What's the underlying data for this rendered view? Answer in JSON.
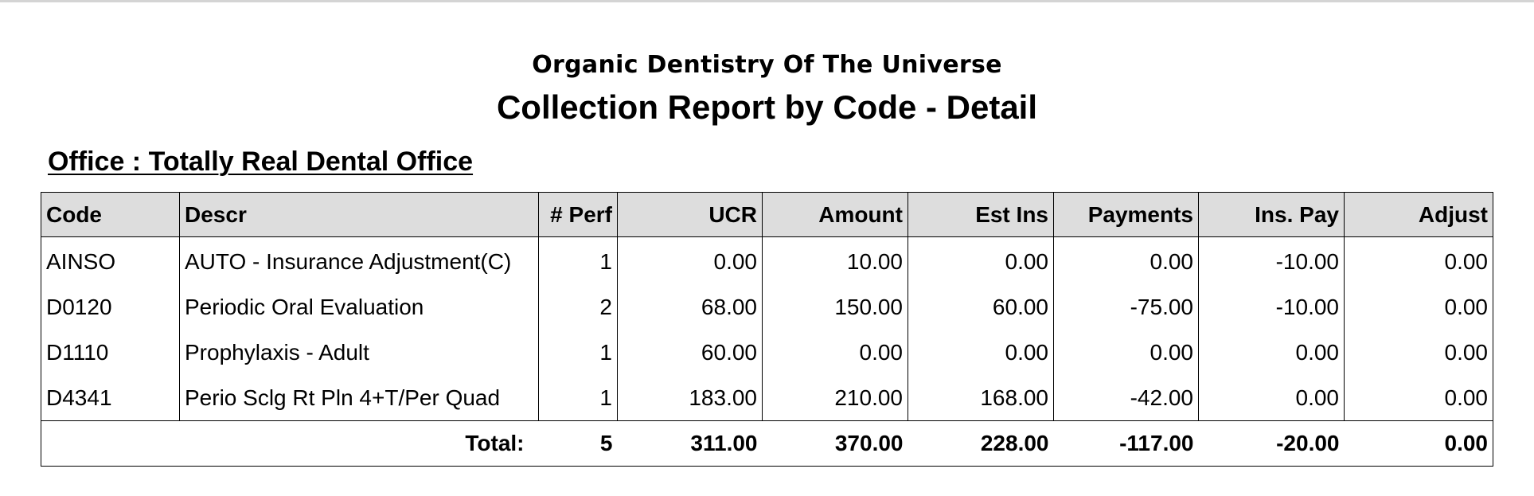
{
  "report": {
    "organization": "Organic Dentistry Of The Universe",
    "title": "Collection Report by Code - Detail",
    "office_heading": "Office : Totally Real Dental Office"
  },
  "table": {
    "headers": {
      "code": "Code",
      "descr": "Descr",
      "perf": "# Perf",
      "ucr": "UCR",
      "amount": "Amount",
      "est_ins": "Est Ins",
      "payments": "Payments",
      "ins_pay": "Ins. Pay",
      "adjust": "Adjust"
    },
    "rows": [
      {
        "code": "AINSO",
        "descr": "AUTO - Insurance Adjustment(C)",
        "perf": "1",
        "ucr": "0.00",
        "amount": "10.00",
        "est_ins": "0.00",
        "payments": "0.00",
        "ins_pay": "-10.00",
        "adjust": "0.00"
      },
      {
        "code": "D0120",
        "descr": "Periodic Oral Evaluation",
        "perf": "2",
        "ucr": "68.00",
        "amount": "150.00",
        "est_ins": "60.00",
        "payments": "-75.00",
        "ins_pay": "-10.00",
        "adjust": "0.00"
      },
      {
        "code": "D1110",
        "descr": "Prophylaxis - Adult",
        "perf": "1",
        "ucr": "60.00",
        "amount": "0.00",
        "est_ins": "0.00",
        "payments": "0.00",
        "ins_pay": "0.00",
        "adjust": "0.00"
      },
      {
        "code": "D4341",
        "descr": "Perio Sclg Rt Pln 4+T/Per Quad",
        "perf": "1",
        "ucr": "183.00",
        "amount": "210.00",
        "est_ins": "168.00",
        "payments": "-42.00",
        "ins_pay": "0.00",
        "adjust": "0.00"
      }
    ],
    "total": {
      "label": "Total:",
      "perf": "5",
      "ucr": "311.00",
      "amount": "370.00",
      "est_ins": "228.00",
      "payments": "-117.00",
      "ins_pay": "-20.00",
      "adjust": "0.00"
    }
  }
}
